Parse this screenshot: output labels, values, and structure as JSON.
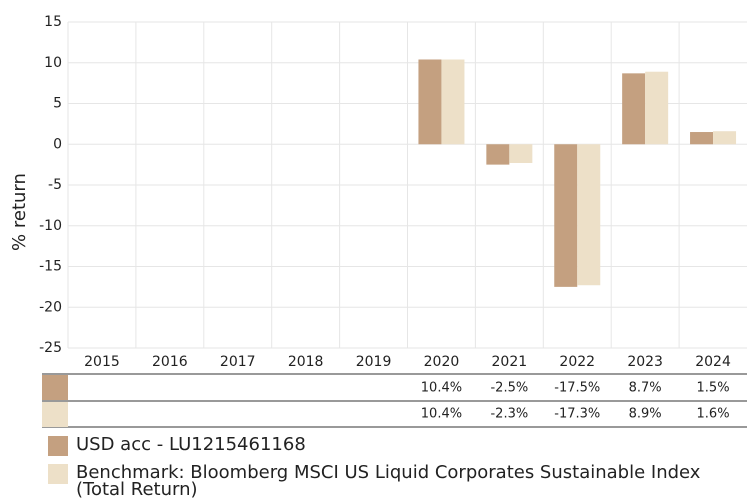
{
  "chart_data": {
    "type": "bar",
    "categories": [
      "2015",
      "2016",
      "2017",
      "2018",
      "2019",
      "2020",
      "2021",
      "2022",
      "2023",
      "2024"
    ],
    "y_label": "% return",
    "ylim": [
      -25,
      15
    ],
    "yticks": [
      15,
      10,
      5,
      0,
      -5,
      -10,
      -15,
      -20,
      -25
    ],
    "grid": true,
    "series": [
      {
        "name": "USD acc - LU1215461168",
        "color": "#c4a080",
        "values": [
          null,
          null,
          null,
          null,
          null,
          10.4,
          -2.5,
          -17.5,
          8.7,
          1.5
        ],
        "value_labels": [
          null,
          null,
          null,
          null,
          null,
          "10.4%",
          "-2.5%",
          "-17.5%",
          "8.7%",
          "1.5%"
        ]
      },
      {
        "name": "Benchmark: Bloomberg MSCI US Liquid Corporates Sustainable Index (Total Return)",
        "color": "#ede0c8",
        "values": [
          null,
          null,
          null,
          null,
          null,
          10.4,
          -2.3,
          -17.3,
          8.9,
          1.6
        ],
        "value_labels": [
          null,
          null,
          null,
          null,
          null,
          "10.4%",
          "-2.3%",
          "-17.3%",
          "8.9%",
          "1.6%"
        ]
      }
    ]
  }
}
